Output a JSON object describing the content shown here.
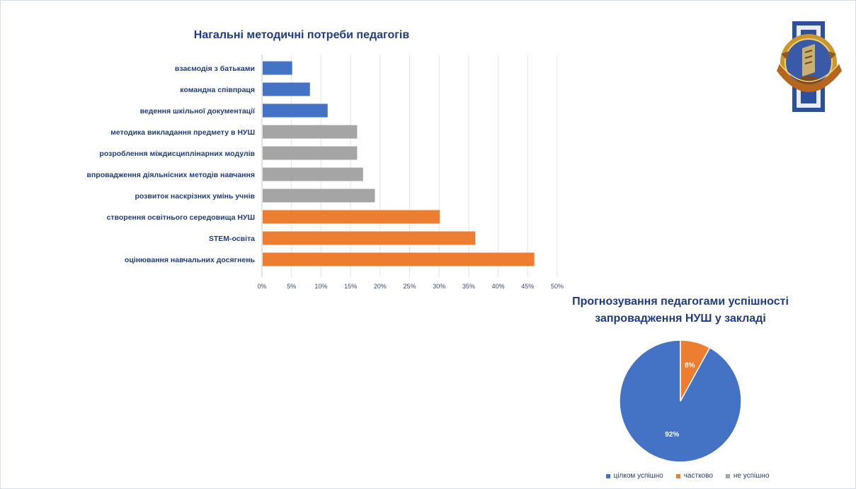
{
  "colors": {
    "blue": "#4472c4",
    "gray": "#a5a5a5",
    "orange": "#ed7d31",
    "title": "#1f3b86",
    "category_label": "#1f3b86"
  },
  "logo": {
    "icon": "school-emblem-icon"
  },
  "chart_data": [
    {
      "type": "bar",
      "orientation": "horizontal",
      "title": "Нагальні  методичні  потреби педагогів",
      "categories": [
        "взаємодія з батьками",
        "командна співпраця",
        "ведення шкільної документації",
        "методика викладання предмету в НУШ",
        "розроблення міждисциплінарних модулів",
        "впровадження діяльнісних методів навчання",
        "розвиток наскрізних умінь учнів",
        "створення освітнього середовища НУШ",
        "STEM-освіта",
        "оцінювання навчальних досягнень"
      ],
      "values": [
        5,
        8,
        11,
        16,
        16,
        17,
        19,
        30,
        36,
        46
      ],
      "bar_colors": [
        "blue",
        "blue",
        "blue",
        "gray",
        "gray",
        "gray",
        "gray",
        "orange",
        "orange",
        "orange"
      ],
      "xticks": [
        "0%",
        "5%",
        "10%",
        "15%",
        "20%",
        "25%",
        "30%",
        "35%",
        "40%",
        "45%",
        "50%"
      ],
      "xlim": [
        0,
        50
      ],
      "unit": "%",
      "grid": true
    },
    {
      "type": "pie",
      "title": [
        "Прогнозування  педагогами успішності",
        "запровадження  НУШ у закладі"
      ],
      "labels": [
        "цілком успішно",
        "частково",
        "не успішно"
      ],
      "values": [
        92,
        8,
        0
      ],
      "data_labels": [
        "92%",
        "8%",
        ""
      ],
      "colors": [
        "#4472c4",
        "#ed7d31",
        "#a5a5a5"
      ],
      "legend": "bottom"
    }
  ]
}
